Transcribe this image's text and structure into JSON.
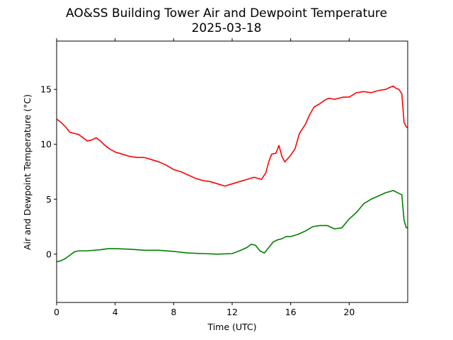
{
  "chart_data": {
    "type": "line",
    "title": "AO&SS Building Tower Air and Dewpoint Temperature",
    "subtitle": "2025-03-18",
    "xlabel": "Time (UTC)",
    "ylabel": "Air and Dewpoint Temperature (°C)",
    "xlim": [
      0,
      24
    ],
    "ylim": [
      -4.4,
      19.4
    ],
    "xticks": [
      0,
      4,
      8,
      12,
      16,
      20
    ],
    "xtick_labels": [
      "0",
      "4",
      "8",
      "12",
      "16",
      "20"
    ],
    "yticks": [
      0,
      5,
      10,
      15
    ],
    "ytick_labels": [
      "0",
      "5",
      "10",
      "15"
    ],
    "grid": false,
    "legend": "none",
    "series": [
      {
        "color": "#ff0000",
        "x": [
          0,
          0.3,
          0.6,
          0.9,
          1.2,
          1.5,
          1.8,
          2.1,
          2.4,
          2.7,
          3.0,
          3.3,
          3.6,
          4.0,
          4.5,
          5.0,
          5.5,
          6.0,
          6.5,
          7.0,
          7.5,
          8.0,
          8.5,
          9.0,
          9.5,
          10.0,
          10.5,
          11.0,
          11.5,
          12.0,
          12.5,
          13.0,
          13.5,
          14.0,
          14.3,
          14.5,
          14.7,
          15.0,
          15.2,
          15.4,
          15.6,
          15.8,
          16.0,
          16.3,
          16.6,
          17.0,
          17.3,
          17.6,
          18.0,
          18.3,
          18.6,
          19.0,
          19.3,
          19.6,
          20.0,
          20.5,
          21.0,
          21.5,
          22.0,
          22.5,
          22.8,
          23.0,
          23.2,
          23.4,
          23.6,
          23.75,
          23.9,
          24.0
        ],
        "values": [
          12.3,
          12.0,
          11.6,
          11.1,
          11.0,
          10.9,
          10.6,
          10.3,
          10.4,
          10.6,
          10.3,
          9.9,
          9.6,
          9.3,
          9.1,
          8.9,
          8.8,
          8.8,
          8.6,
          8.4,
          8.1,
          7.7,
          7.5,
          7.2,
          6.9,
          6.7,
          6.6,
          6.4,
          6.2,
          6.4,
          6.6,
          6.8,
          7.0,
          6.8,
          7.4,
          8.4,
          9.1,
          9.2,
          9.9,
          8.9,
          8.4,
          8.7,
          9.0,
          9.6,
          11.0,
          11.8,
          12.7,
          13.4,
          13.7,
          14.0,
          14.2,
          14.1,
          14.2,
          14.3,
          14.3,
          14.7,
          14.8,
          14.7,
          14.9,
          15.0,
          15.2,
          15.3,
          15.1,
          15.0,
          14.6,
          12.0,
          11.6,
          11.5
        ]
      },
      {
        "color": "#008000",
        "x": [
          0,
          0.3,
          0.6,
          0.9,
          1.2,
          1.5,
          1.8,
          2.1,
          2.5,
          3.0,
          3.5,
          4.0,
          5.0,
          6.0,
          7.0,
          8.0,
          9.0,
          10.0,
          11.0,
          12.0,
          12.5,
          13.0,
          13.3,
          13.6,
          13.9,
          14.2,
          14.5,
          14.8,
          15.1,
          15.4,
          15.7,
          16.0,
          16.5,
          17.0,
          17.5,
          18.0,
          18.5,
          19.0,
          19.5,
          20.0,
          20.5,
          21.0,
          21.5,
          22.0,
          22.5,
          22.8,
          23.0,
          23.3,
          23.6,
          23.75,
          23.9,
          24.0
        ],
        "values": [
          -0.7,
          -0.6,
          -0.4,
          -0.1,
          0.2,
          0.3,
          0.3,
          0.3,
          0.35,
          0.4,
          0.5,
          0.5,
          0.45,
          0.35,
          0.35,
          0.25,
          0.1,
          0.05,
          0.0,
          0.05,
          0.3,
          0.6,
          0.9,
          0.8,
          0.3,
          0.1,
          0.6,
          1.1,
          1.3,
          1.4,
          1.6,
          1.6,
          1.8,
          2.1,
          2.5,
          2.6,
          2.6,
          2.3,
          2.4,
          3.2,
          3.8,
          4.6,
          5.0,
          5.3,
          5.6,
          5.7,
          5.8,
          5.6,
          5.4,
          3.1,
          2.4,
          2.4
        ]
      }
    ]
  }
}
